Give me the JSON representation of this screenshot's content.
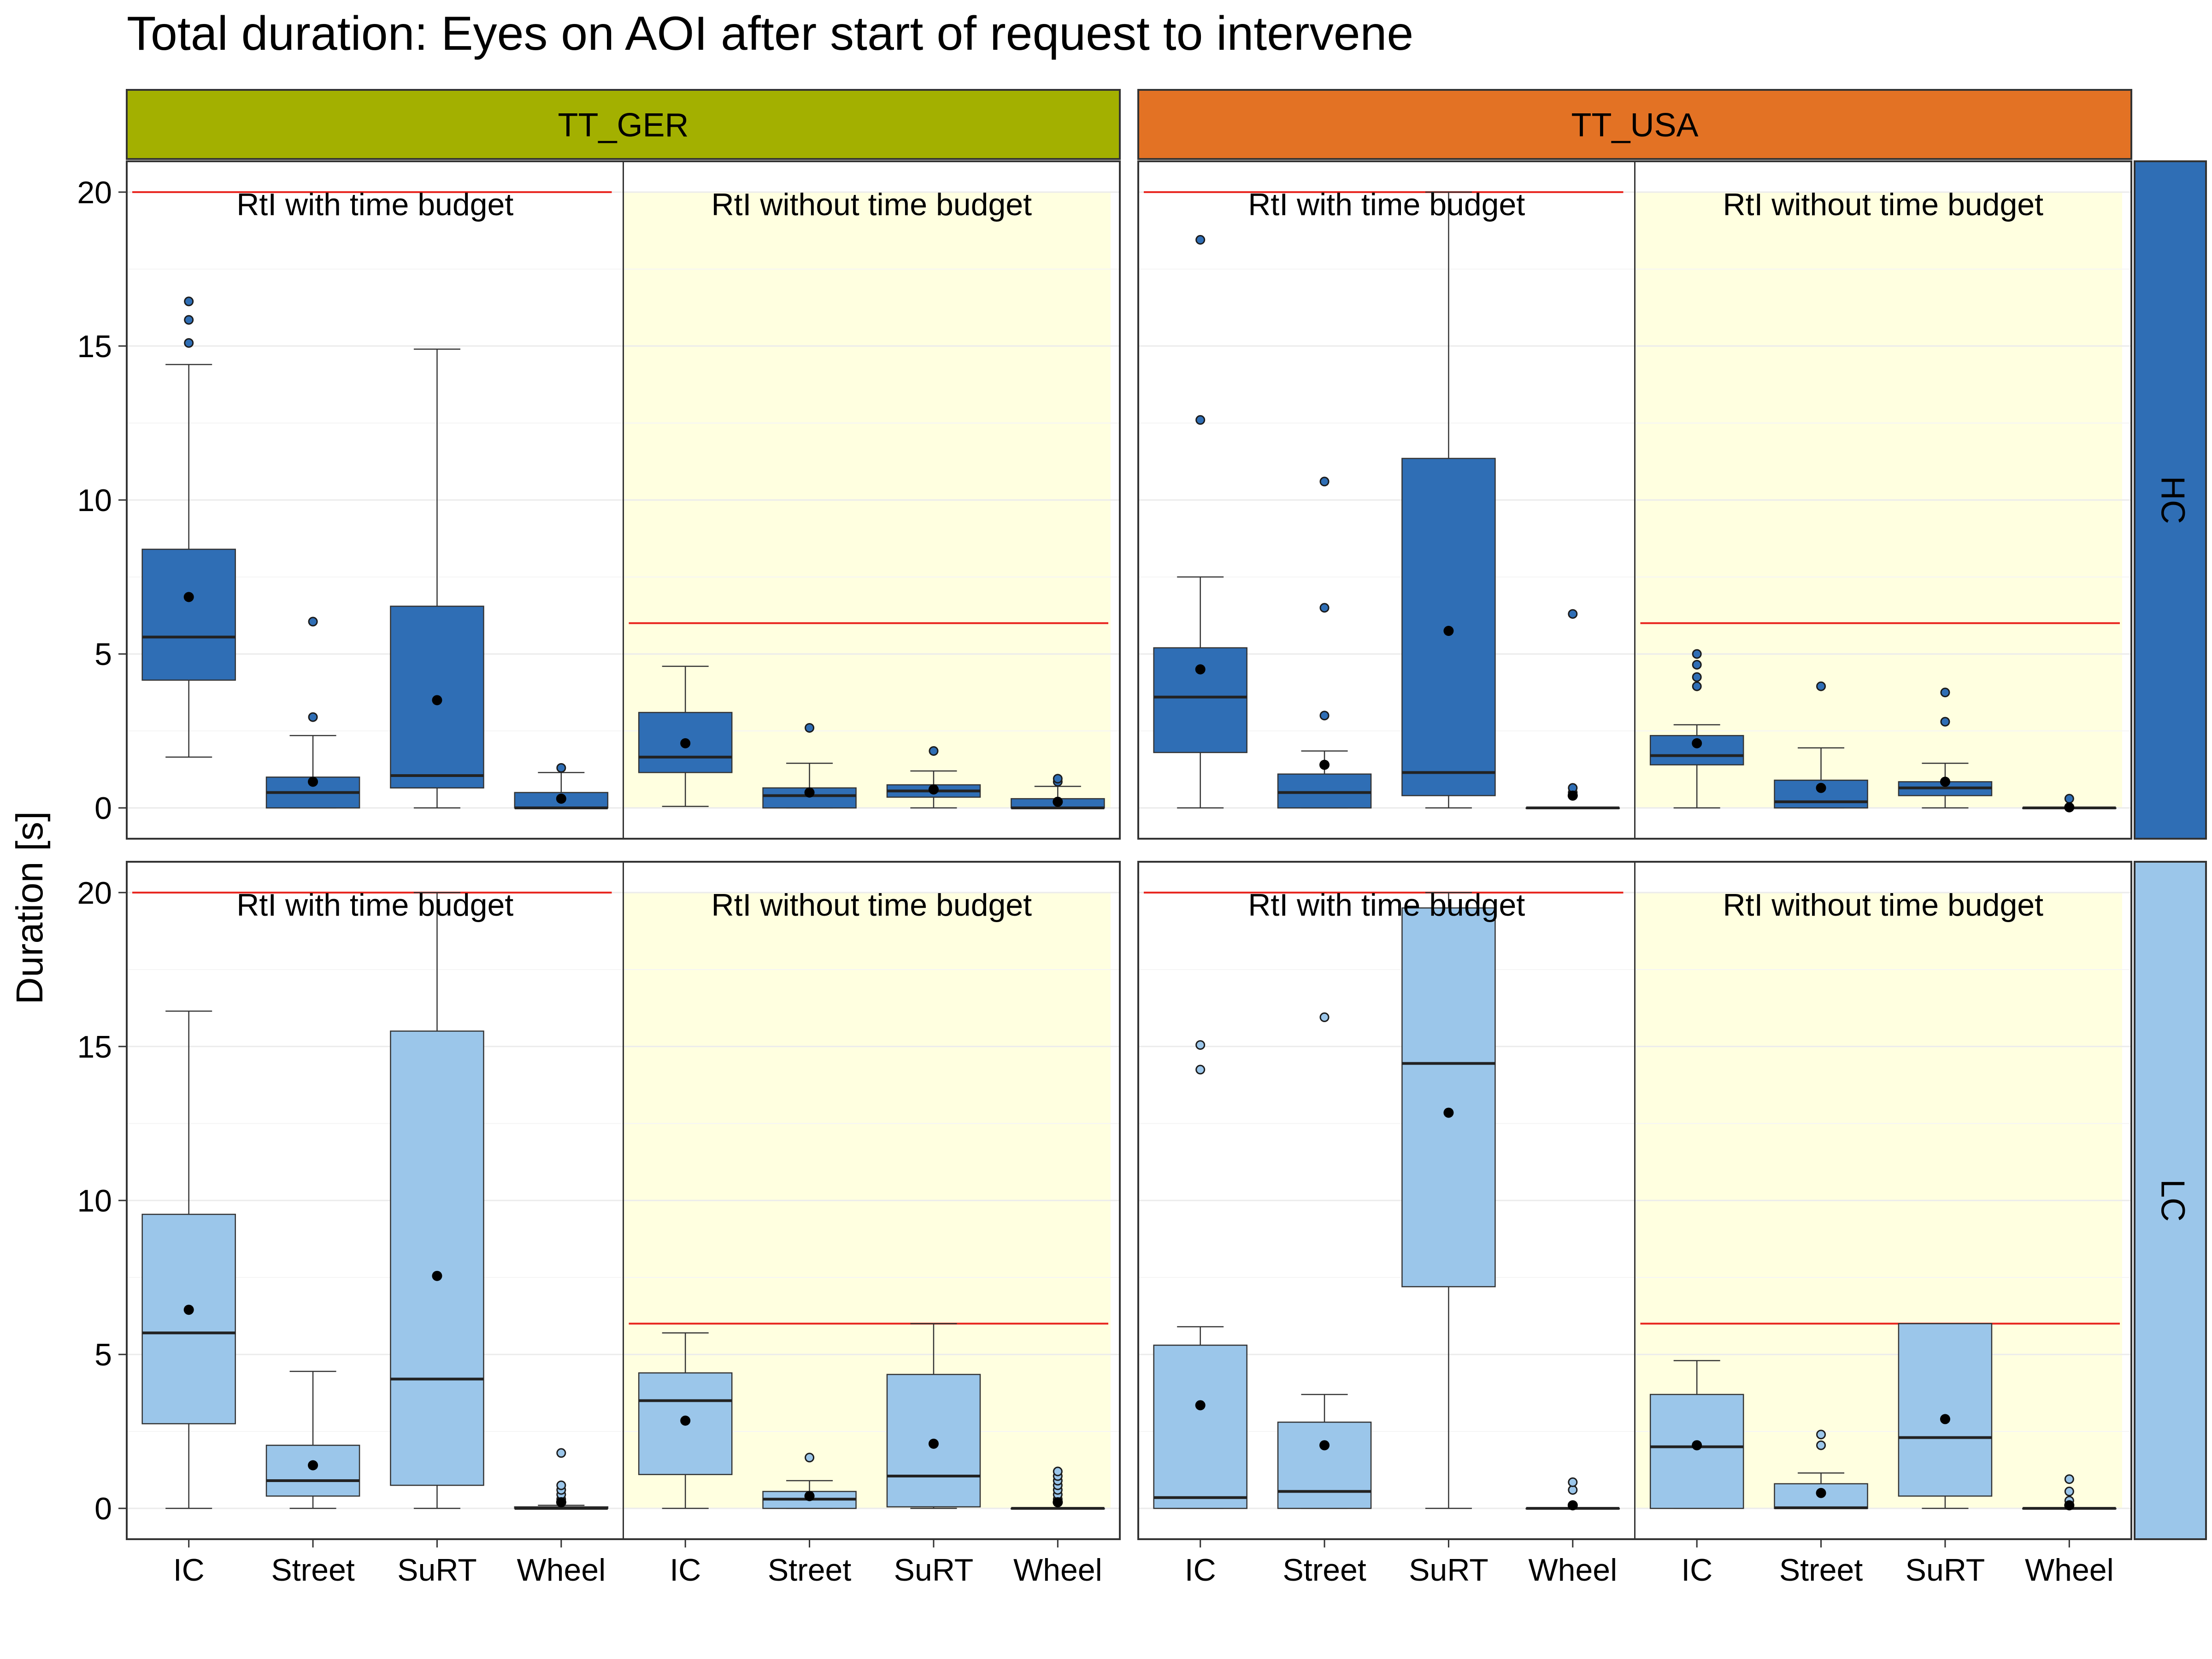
{
  "chart_data": {
    "type": "box",
    "title": "Total duration: Eyes on AOI after start of request to intervene",
    "ylabel": "Duration [s]",
    "xlabel": "",
    "ylim": [
      -1,
      21
    ],
    "yticks": [
      0,
      5,
      10,
      15,
      20
    ],
    "categories": [
      "IC",
      "Street",
      "SuRT",
      "Wheel"
    ],
    "column_facets": [
      {
        "label": "TT_GER",
        "color": "#a3b000"
      },
      {
        "label": "TT_USA",
        "color": "#e37224"
      }
    ],
    "row_facets": [
      {
        "label": "HC",
        "color": "#2f6eb5"
      },
      {
        "label": "LC",
        "color": "#9bc6ea"
      }
    ],
    "conditions": [
      {
        "label": "RtI with time budget",
        "reference_line": 20,
        "shaded": false
      },
      {
        "label": "RtI without time budget",
        "reference_line": 6,
        "shaded": true
      }
    ],
    "colors": {
      "shade": "#ffffe0",
      "reference_line": "#e8251f",
      "grid": "#ebebeb",
      "mean_point": "#000000"
    },
    "panels": [
      {
        "row": "HC",
        "col": "TT_GER",
        "groups": [
          {
            "condition": "RtI with time budget",
            "boxes": [
              {
                "category": "IC",
                "min": 1.65,
                "q1": 4.15,
                "median": 5.55,
                "q3": 8.4,
                "max": 14.4,
                "mean": 6.85,
                "outliers": [
                  15.1,
                  15.85,
                  16.45
                ]
              },
              {
                "category": "Street",
                "min": 0,
                "q1": 0,
                "median": 0.5,
                "q3": 1.0,
                "max": 2.35,
                "mean": 0.85,
                "outliers": [
                  2.95,
                  6.05
                ]
              },
              {
                "category": "SuRT",
                "min": 0,
                "q1": 0.65,
                "median": 1.05,
                "q3": 6.55,
                "max": 14.9,
                "mean": 3.5,
                "outliers": []
              },
              {
                "category": "Wheel",
                "min": 0,
                "q1": 0,
                "median": 0,
                "q3": 0.5,
                "max": 1.15,
                "mean": 0.3,
                "outliers": [
                  1.3
                ]
              }
            ]
          },
          {
            "condition": "RtI without time budget",
            "boxes": [
              {
                "category": "IC",
                "min": 0.05,
                "q1": 1.15,
                "median": 1.65,
                "q3": 3.1,
                "max": 4.6,
                "mean": 2.1,
                "outliers": []
              },
              {
                "category": "Street",
                "min": 0,
                "q1": 0,
                "median": 0.4,
                "q3": 0.65,
                "max": 1.45,
                "mean": 0.5,
                "outliers": [
                  2.6
                ]
              },
              {
                "category": "SuRT",
                "min": 0,
                "q1": 0.35,
                "median": 0.55,
                "q3": 0.75,
                "max": 1.2,
                "mean": 0.6,
                "outliers": [
                  1.85
                ]
              },
              {
                "category": "Wheel",
                "min": 0,
                "q1": 0,
                "median": 0,
                "q3": 0.3,
                "max": 0.7,
                "mean": 0.2,
                "outliers": [
                  0.85,
                  0.95
                ]
              }
            ]
          }
        ]
      },
      {
        "row": "HC",
        "col": "TT_USA",
        "groups": [
          {
            "condition": "RtI with time budget",
            "boxes": [
              {
                "category": "IC",
                "min": 0,
                "q1": 1.8,
                "median": 3.6,
                "q3": 5.2,
                "max": 7.5,
                "mean": 4.5,
                "outliers": [
                  12.6,
                  18.45
                ]
              },
              {
                "category": "Street",
                "min": 0,
                "q1": 0,
                "median": 0.5,
                "q3": 1.1,
                "max": 1.85,
                "mean": 1.4,
                "outliers": [
                  3.0,
                  6.5,
                  10.6
                ]
              },
              {
                "category": "SuRT",
                "min": 0,
                "q1": 0.4,
                "median": 1.15,
                "q3": 11.35,
                "max": 20.0,
                "mean": 5.75,
                "outliers": []
              },
              {
                "category": "Wheel",
                "min": 0,
                "q1": 0,
                "median": 0,
                "q3": 0,
                "max": 0,
                "mean": 0.4,
                "outliers": [
                  0.5,
                  0.65,
                  6.3
                ]
              }
            ]
          },
          {
            "condition": "RtI without time budget",
            "boxes": [
              {
                "category": "IC",
                "min": 0,
                "q1": 1.4,
                "median": 1.7,
                "q3": 2.35,
                "max": 2.7,
                "mean": 2.1,
                "outliers": [
                  3.95,
                  4.25,
                  4.65,
                  5.0
                ]
              },
              {
                "category": "Street",
                "min": 0,
                "q1": 0,
                "median": 0.2,
                "q3": 0.9,
                "max": 1.95,
                "mean": 0.65,
                "outliers": [
                  3.95
                ]
              },
              {
                "category": "SuRT",
                "min": 0,
                "q1": 0.4,
                "median": 0.65,
                "q3": 0.85,
                "max": 1.45,
                "mean": 0.85,
                "outliers": [
                  2.8,
                  3.75
                ]
              },
              {
                "category": "Wheel",
                "min": 0,
                "q1": 0,
                "median": 0,
                "q3": 0,
                "max": 0,
                "mean": 0.02,
                "outliers": [
                  0.3
                ]
              }
            ]
          }
        ]
      },
      {
        "row": "LC",
        "col": "TT_GER",
        "groups": [
          {
            "condition": "RtI with time budget",
            "boxes": [
              {
                "category": "IC",
                "min": 0,
                "q1": 2.75,
                "median": 5.7,
                "q3": 9.55,
                "max": 16.15,
                "mean": 6.45,
                "outliers": []
              },
              {
                "category": "Street",
                "min": 0,
                "q1": 0.4,
                "median": 0.9,
                "q3": 2.05,
                "max": 4.45,
                "mean": 1.4,
                "outliers": []
              },
              {
                "category": "SuRT",
                "min": 0,
                "q1": 0.75,
                "median": 4.2,
                "q3": 15.5,
                "max": 20.0,
                "mean": 7.55,
                "outliers": []
              },
              {
                "category": "Wheel",
                "min": 0,
                "q1": 0,
                "median": 0,
                "q3": 0.05,
                "max": 0.1,
                "mean": 0.2,
                "outliers": [
                  0.3,
                  0.45,
                  0.6,
                  0.75,
                  1.8
                ]
              }
            ]
          },
          {
            "condition": "RtI without time budget",
            "boxes": [
              {
                "category": "IC",
                "min": 0,
                "q1": 1.1,
                "median": 3.5,
                "q3": 4.4,
                "max": 5.7,
                "mean": 2.85,
                "outliers": []
              },
              {
                "category": "Street",
                "min": 0,
                "q1": 0,
                "median": 0.3,
                "q3": 0.55,
                "max": 0.9,
                "mean": 0.4,
                "outliers": [
                  1.65
                ]
              },
              {
                "category": "SuRT",
                "min": 0,
                "q1": 0.05,
                "median": 1.05,
                "q3": 4.35,
                "max": 6.0,
                "mean": 2.1,
                "outliers": []
              },
              {
                "category": "Wheel",
                "min": 0,
                "q1": 0,
                "median": 0,
                "q3": 0,
                "max": 0,
                "mean": 0.2,
                "outliers": [
                  0.3,
                  0.45,
                  0.6,
                  0.75,
                  0.9,
                  1.05,
                  1.2
                ]
              }
            ]
          }
        ]
      },
      {
        "row": "LC",
        "col": "TT_USA",
        "groups": [
          {
            "condition": "RtI with time budget",
            "boxes": [
              {
                "category": "IC",
                "min": 0,
                "q1": 0,
                "median": 0.35,
                "q3": 5.3,
                "max": 5.9,
                "mean": 3.35,
                "outliers": [
                  14.25,
                  15.05
                ]
              },
              {
                "category": "Street",
                "min": 0,
                "q1": 0,
                "median": 0.55,
                "q3": 2.8,
                "max": 3.7,
                "mean": 2.05,
                "outliers": [
                  15.95
                ]
              },
              {
                "category": "SuRT",
                "min": 0,
                "q1": 7.2,
                "median": 14.45,
                "q3": 19.5,
                "max": 20.0,
                "mean": 12.85,
                "outliers": []
              },
              {
                "category": "Wheel",
                "min": 0,
                "q1": 0,
                "median": 0,
                "q3": 0,
                "max": 0,
                "mean": 0.1,
                "outliers": [
                  0.6,
                  0.85
                ]
              }
            ]
          },
          {
            "condition": "RtI without time budget",
            "boxes": [
              {
                "category": "IC",
                "min": 0,
                "q1": 0,
                "median": 2.0,
                "q3": 3.7,
                "max": 4.8,
                "mean": 2.05,
                "outliers": []
              },
              {
                "category": "Street",
                "min": 0,
                "q1": 0,
                "median": 0.02,
                "q3": 0.8,
                "max": 1.15,
                "mean": 0.5,
                "outliers": [
                  2.05,
                  2.4
                ]
              },
              {
                "category": "SuRT",
                "min": 0,
                "q1": 0.4,
                "median": 2.3,
                "q3": 6.0,
                "max": 6.0,
                "mean": 2.9,
                "outliers": []
              },
              {
                "category": "Wheel",
                "min": 0,
                "q1": 0,
                "median": 0,
                "q3": 0,
                "max": 0,
                "mean": 0.1,
                "outliers": [
                  0.25,
                  0.55,
                  0.95
                ]
              }
            ]
          }
        ]
      }
    ]
  }
}
